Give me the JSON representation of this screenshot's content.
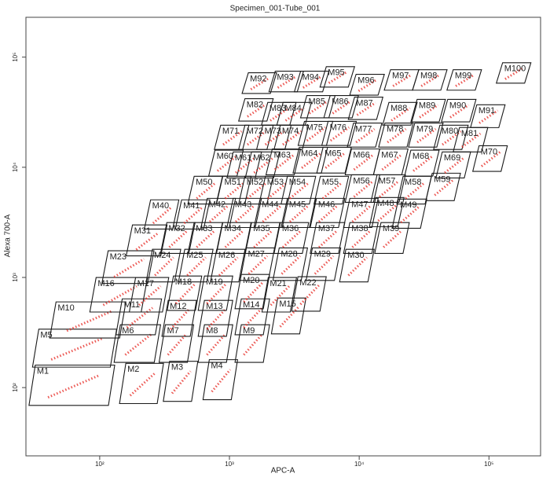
{
  "chart_data": {
    "type": "gates",
    "title": "Specimen_001-Tube_001",
    "x_label": "APC-A",
    "y_label": "Alexa 700-A",
    "xscale": "log",
    "yscale": "log",
    "xlim": [
      27,
      250000
    ],
    "ylim": [
      24,
      230000
    ],
    "xticks": [
      {
        "value": 100,
        "label": "10²"
      },
      {
        "value": 1000,
        "label": "10³"
      },
      {
        "value": 10000,
        "label": "10⁴"
      },
      {
        "value": 100000,
        "label": "10⁵"
      }
    ],
    "yticks": [
      {
        "value": 100,
        "label": "10²"
      },
      {
        "value": 1000,
        "label": "10³"
      },
      {
        "value": 10000,
        "label": "10⁴"
      },
      {
        "value": 100000,
        "label": "10⁵"
      }
    ],
    "gate_color": "#1a1a1a",
    "event_color": "#e8302a",
    "gates": [
      {
        "label": "M1",
        "x": 61,
        "y": 105
      },
      {
        "label": "M2",
        "x": 210,
        "y": 109
      },
      {
        "label": "M3",
        "x": 420,
        "y": 114
      },
      {
        "label": "M4",
        "x": 850,
        "y": 118
      },
      {
        "label": "M5",
        "x": 64,
        "y": 228
      },
      {
        "label": "M6",
        "x": 195,
        "y": 251
      },
      {
        "label": "M7",
        "x": 390,
        "y": 251
      },
      {
        "label": "M8",
        "x": 780,
        "y": 251
      },
      {
        "label": "M9",
        "x": 1500,
        "y": 251
      },
      {
        "label": "M10",
        "x": 81,
        "y": 411
      },
      {
        "label": "M11",
        "x": 200,
        "y": 439
      },
      {
        "label": "M12",
        "x": 410,
        "y": 425
      },
      {
        "label": "M13",
        "x": 780,
        "y": 425
      },
      {
        "label": "M14",
        "x": 1500,
        "y": 439
      },
      {
        "label": "M15",
        "x": 2860,
        "y": 447
      },
      {
        "label": "M16",
        "x": 140,
        "y": 696
      },
      {
        "label": "M17",
        "x": 240,
        "y": 696
      },
      {
        "label": "M18",
        "x": 450,
        "y": 719
      },
      {
        "label": "M19",
        "x": 780,
        "y": 719
      },
      {
        "label": "M20",
        "x": 1500,
        "y": 744
      },
      {
        "label": "M21",
        "x": 2420,
        "y": 696
      },
      {
        "label": "M22",
        "x": 4100,
        "y": 708
      },
      {
        "label": "M23",
        "x": 165,
        "y": 1240
      },
      {
        "label": "M24",
        "x": 310,
        "y": 1280
      },
      {
        "label": "M25",
        "x": 550,
        "y": 1280
      },
      {
        "label": "M26",
        "x": 970,
        "y": 1280
      },
      {
        "label": "M27",
        "x": 1640,
        "y": 1320
      },
      {
        "label": "M28",
        "x": 2940,
        "y": 1320
      },
      {
        "label": "M29",
        "x": 5300,
        "y": 1320
      },
      {
        "label": "M30",
        "x": 9600,
        "y": 1280
      },
      {
        "label": "M31",
        "x": 230,
        "y": 2170
      },
      {
        "label": "M32",
        "x": 400,
        "y": 2280
      },
      {
        "label": "M33",
        "x": 650,
        "y": 2280
      },
      {
        "label": "M34",
        "x": 1080,
        "y": 2280
      },
      {
        "label": "M35",
        "x": 1800,
        "y": 2280
      },
      {
        "label": "M36",
        "x": 3000,
        "y": 2280
      },
      {
        "label": "M37",
        "x": 5700,
        "y": 2280
      },
      {
        "label": "M38",
        "x": 10300,
        "y": 2280
      },
      {
        "label": "M39",
        "x": 17900,
        "y": 2280
      },
      {
        "label": "M40",
        "x": 300,
        "y": 3730
      },
      {
        "label": "M41",
        "x": 520,
        "y": 3730
      },
      {
        "label": "M42",
        "x": 820,
        "y": 3850
      },
      {
        "label": "M43",
        "x": 1300,
        "y": 3850
      },
      {
        "label": "M44",
        "x": 2100,
        "y": 3850
      },
      {
        "label": "M45",
        "x": 3400,
        "y": 3850
      },
      {
        "label": "M46",
        "x": 5700,
        "y": 3850
      },
      {
        "label": "M47",
        "x": 10300,
        "y": 3850
      },
      {
        "label": "M48",
        "x": 16300,
        "y": 3920
      },
      {
        "label": "M49",
        "x": 24400,
        "y": 3790
      },
      {
        "label": "M50",
        "x": 650,
        "y": 6200
      },
      {
        "label": "M51",
        "x": 1080,
        "y": 6200
      },
      {
        "label": "M52",
        "x": 1600,
        "y": 6200
      },
      {
        "label": "M53",
        "x": 2300,
        "y": 6200
      },
      {
        "label": "M54",
        "x": 3400,
        "y": 6200
      },
      {
        "label": "M55",
        "x": 6100,
        "y": 6200
      },
      {
        "label": "M56",
        "x": 10600,
        "y": 6410
      },
      {
        "label": "M57",
        "x": 16700,
        "y": 6410
      },
      {
        "label": "M58",
        "x": 26500,
        "y": 6200
      },
      {
        "label": "M59",
        "x": 44400,
        "y": 6630
      },
      {
        "label": "M60",
        "x": 940,
        "y": 10900
      },
      {
        "label": "M61",
        "x": 1300,
        "y": 10500
      },
      {
        "label": "M62",
        "x": 1800,
        "y": 10500
      },
      {
        "label": "M63",
        "x": 2600,
        "y": 11200
      },
      {
        "label": "M64",
        "x": 4200,
        "y": 11600
      },
      {
        "label": "M65",
        "x": 6400,
        "y": 11600
      },
      {
        "label": "M66",
        "x": 10600,
        "y": 11200
      },
      {
        "label": "M67",
        "x": 17500,
        "y": 11200
      },
      {
        "label": "M68",
        "x": 30400,
        "y": 10900
      },
      {
        "label": "M69",
        "x": 53100,
        "y": 10500
      },
      {
        "label": "M70",
        "x": 102000,
        "y": 12000
      },
      {
        "label": "M71",
        "x": 1040,
        "y": 18700
      },
      {
        "label": "M72",
        "x": 1600,
        "y": 18700
      },
      {
        "label": "M73",
        "x": 2200,
        "y": 18700
      },
      {
        "label": "M74",
        "x": 3000,
        "y": 18700
      },
      {
        "label": "M75",
        "x": 4600,
        "y": 20300
      },
      {
        "label": "M76",
        "x": 7000,
        "y": 20300
      },
      {
        "label": "M77",
        "x": 11000,
        "y": 19600
      },
      {
        "label": "M78",
        "x": 19200,
        "y": 19600
      },
      {
        "label": "M79",
        "x": 32600,
        "y": 19600
      },
      {
        "label": "M80",
        "x": 50900,
        "y": 18700
      },
      {
        "label": "M81",
        "x": 72100,
        "y": 17800
      },
      {
        "label": "M82",
        "x": 1600,
        "y": 33200
      },
      {
        "label": "M83",
        "x": 2400,
        "y": 30600
      },
      {
        "label": "M84",
        "x": 3150,
        "y": 30600
      },
      {
        "label": "M85",
        "x": 4800,
        "y": 35500
      },
      {
        "label": "M86",
        "x": 7260,
        "y": 35500
      },
      {
        "label": "M87",
        "x": 11200,
        "y": 34300
      },
      {
        "label": "M88",
        "x": 20600,
        "y": 30600
      },
      {
        "label": "M89",
        "x": 34000,
        "y": 32700
      },
      {
        "label": "M90",
        "x": 58500,
        "y": 32700
      },
      {
        "label": "M91",
        "x": 98000,
        "y": 29100
      },
      {
        "label": "M92",
        "x": 1700,
        "y": 58100
      },
      {
        "label": "M93",
        "x": 2740,
        "y": 60100
      },
      {
        "label": "M94",
        "x": 4300,
        "y": 60100
      },
      {
        "label": "M95",
        "x": 6780,
        "y": 66200
      },
      {
        "label": "M96",
        "x": 11500,
        "y": 56200
      },
      {
        "label": "M97",
        "x": 21200,
        "y": 62100
      },
      {
        "label": "M98",
        "x": 35000,
        "y": 62100
      },
      {
        "label": "M99",
        "x": 64500,
        "y": 62100
      },
      {
        "label": "M100",
        "x": 155000,
        "y": 71900
      }
    ]
  }
}
